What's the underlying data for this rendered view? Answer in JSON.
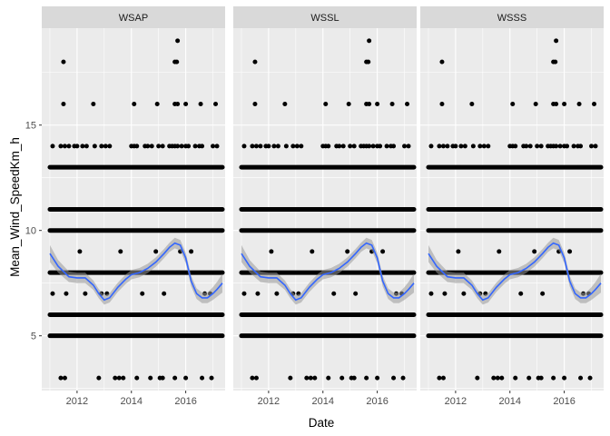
{
  "chart_data": {
    "type": "scatter",
    "xlabel": "Date",
    "ylabel": "Mean_Wind_SpeedKm_h",
    "xlim": [
      2010.7,
      2017.45
    ],
    "ylim": [
      2.4,
      19.6
    ],
    "x_ticks": [
      2012,
      2014,
      2016
    ],
    "x_tick_labels": [
      "2012",
      "2014",
      "2016"
    ],
    "y_ticks": [
      5,
      10,
      15
    ],
    "y_tick_labels": [
      "5",
      "10",
      "15"
    ],
    "grid": true,
    "legend": "none",
    "colors": {
      "panel_bg": "#EBEBEB",
      "strip_bg": "#D9D9D9",
      "points": "#000000",
      "smooth_line": "#3366FF",
      "ribbon": "#999999"
    },
    "facets": [
      "WSAP",
      "WSSL",
      "WSSS"
    ],
    "bands": [
      {
        "y": 5,
        "x": [
          2011.0,
          2017.35
        ]
      },
      {
        "y": 6,
        "x": [
          2011.0,
          2017.35
        ]
      },
      {
        "y": 8,
        "x": [
          2011.0,
          2017.35
        ]
      },
      {
        "y": 10,
        "x": [
          2011.0,
          2017.35
        ]
      },
      {
        "y": 11,
        "x": [
          2011.0,
          2017.35
        ]
      },
      {
        "y": 13,
        "x": [
          2011.0,
          2017.35
        ]
      }
    ],
    "points": [
      {
        "x": 2011.1,
        "y": 14
      },
      {
        "x": 2011.4,
        "y": 14
      },
      {
        "x": 2011.55,
        "y": 14
      },
      {
        "x": 2011.7,
        "y": 14
      },
      {
        "x": 2011.9,
        "y": 14
      },
      {
        "x": 2012.0,
        "y": 14
      },
      {
        "x": 2012.2,
        "y": 14
      },
      {
        "x": 2012.35,
        "y": 14
      },
      {
        "x": 2012.65,
        "y": 14
      },
      {
        "x": 2012.9,
        "y": 14
      },
      {
        "x": 2013.05,
        "y": 14
      },
      {
        "x": 2013.2,
        "y": 14
      },
      {
        "x": 2014.0,
        "y": 14
      },
      {
        "x": 2014.1,
        "y": 14
      },
      {
        "x": 2014.2,
        "y": 14
      },
      {
        "x": 2014.5,
        "y": 14
      },
      {
        "x": 2014.6,
        "y": 14
      },
      {
        "x": 2014.75,
        "y": 14
      },
      {
        "x": 2015.0,
        "y": 14
      },
      {
        "x": 2015.15,
        "y": 14
      },
      {
        "x": 2015.4,
        "y": 14
      },
      {
        "x": 2015.5,
        "y": 14
      },
      {
        "x": 2015.6,
        "y": 14
      },
      {
        "x": 2015.7,
        "y": 14
      },
      {
        "x": 2015.85,
        "y": 14
      },
      {
        "x": 2016.0,
        "y": 14
      },
      {
        "x": 2016.1,
        "y": 14
      },
      {
        "x": 2016.35,
        "y": 14
      },
      {
        "x": 2016.5,
        "y": 14
      },
      {
        "x": 2016.6,
        "y": 14
      },
      {
        "x": 2017.0,
        "y": 14
      },
      {
        "x": 2017.15,
        "y": 14
      },
      {
        "x": 2011.5,
        "y": 16
      },
      {
        "x": 2012.6,
        "y": 16
      },
      {
        "x": 2014.1,
        "y": 16
      },
      {
        "x": 2014.95,
        "y": 16
      },
      {
        "x": 2015.6,
        "y": 16
      },
      {
        "x": 2015.7,
        "y": 16
      },
      {
        "x": 2016.0,
        "y": 16
      },
      {
        "x": 2016.55,
        "y": 16
      },
      {
        "x": 2017.1,
        "y": 16
      },
      {
        "x": 2011.5,
        "y": 18
      },
      {
        "x": 2015.6,
        "y": 18
      },
      {
        "x": 2015.67,
        "y": 18
      },
      {
        "x": 2015.7,
        "y": 19
      },
      {
        "x": 2011.4,
        "y": 3
      },
      {
        "x": 2011.55,
        "y": 3
      },
      {
        "x": 2012.8,
        "y": 3
      },
      {
        "x": 2013.4,
        "y": 3
      },
      {
        "x": 2013.55,
        "y": 3
      },
      {
        "x": 2013.7,
        "y": 3
      },
      {
        "x": 2014.2,
        "y": 3
      },
      {
        "x": 2014.7,
        "y": 3
      },
      {
        "x": 2015.05,
        "y": 3
      },
      {
        "x": 2015.15,
        "y": 3
      },
      {
        "x": 2015.6,
        "y": 3
      },
      {
        "x": 2016.0,
        "y": 3
      },
      {
        "x": 2016.6,
        "y": 3
      },
      {
        "x": 2016.95,
        "y": 3
      },
      {
        "x": 2011.1,
        "y": 7
      },
      {
        "x": 2011.6,
        "y": 7
      },
      {
        "x": 2012.3,
        "y": 7
      },
      {
        "x": 2012.9,
        "y": 7
      },
      {
        "x": 2013.1,
        "y": 7
      },
      {
        "x": 2014.4,
        "y": 7
      },
      {
        "x": 2015.2,
        "y": 7
      },
      {
        "x": 2016.7,
        "y": 7
      },
      {
        "x": 2016.9,
        "y": 7
      },
      {
        "x": 2012.1,
        "y": 9
      },
      {
        "x": 2013.6,
        "y": 9
      },
      {
        "x": 2014.9,
        "y": 9
      },
      {
        "x": 2015.8,
        "y": 9
      },
      {
        "x": 2016.2,
        "y": 9
      }
    ],
    "smooth": {
      "x": [
        2011.0,
        2011.3,
        2011.7,
        2012.0,
        2012.3,
        2012.6,
        2012.8,
        2013.0,
        2013.2,
        2013.5,
        2013.8,
        2014.0,
        2014.3,
        2014.6,
        2014.9,
        2015.2,
        2015.4,
        2015.6,
        2015.8,
        2016.0,
        2016.2,
        2016.4,
        2016.6,
        2016.8,
        2017.0,
        2017.15,
        2017.35
      ],
      "y": [
        8.9,
        8.3,
        7.8,
        7.75,
        7.75,
        7.4,
        7.0,
        6.7,
        6.8,
        7.3,
        7.7,
        7.9,
        8.0,
        8.2,
        8.5,
        8.9,
        9.2,
        9.4,
        9.3,
        8.7,
        7.6,
        7.0,
        6.8,
        6.8,
        7.0,
        7.2,
        7.5
      ]
    },
    "smooth_se": [
      0.4,
      0.3,
      0.25,
      0.25,
      0.25,
      0.22,
      0.22,
      0.22,
      0.22,
      0.22,
      0.22,
      0.22,
      0.22,
      0.22,
      0.22,
      0.22,
      0.22,
      0.25,
      0.25,
      0.25,
      0.25,
      0.25,
      0.25,
      0.25,
      0.3,
      0.35,
      0.45
    ]
  }
}
